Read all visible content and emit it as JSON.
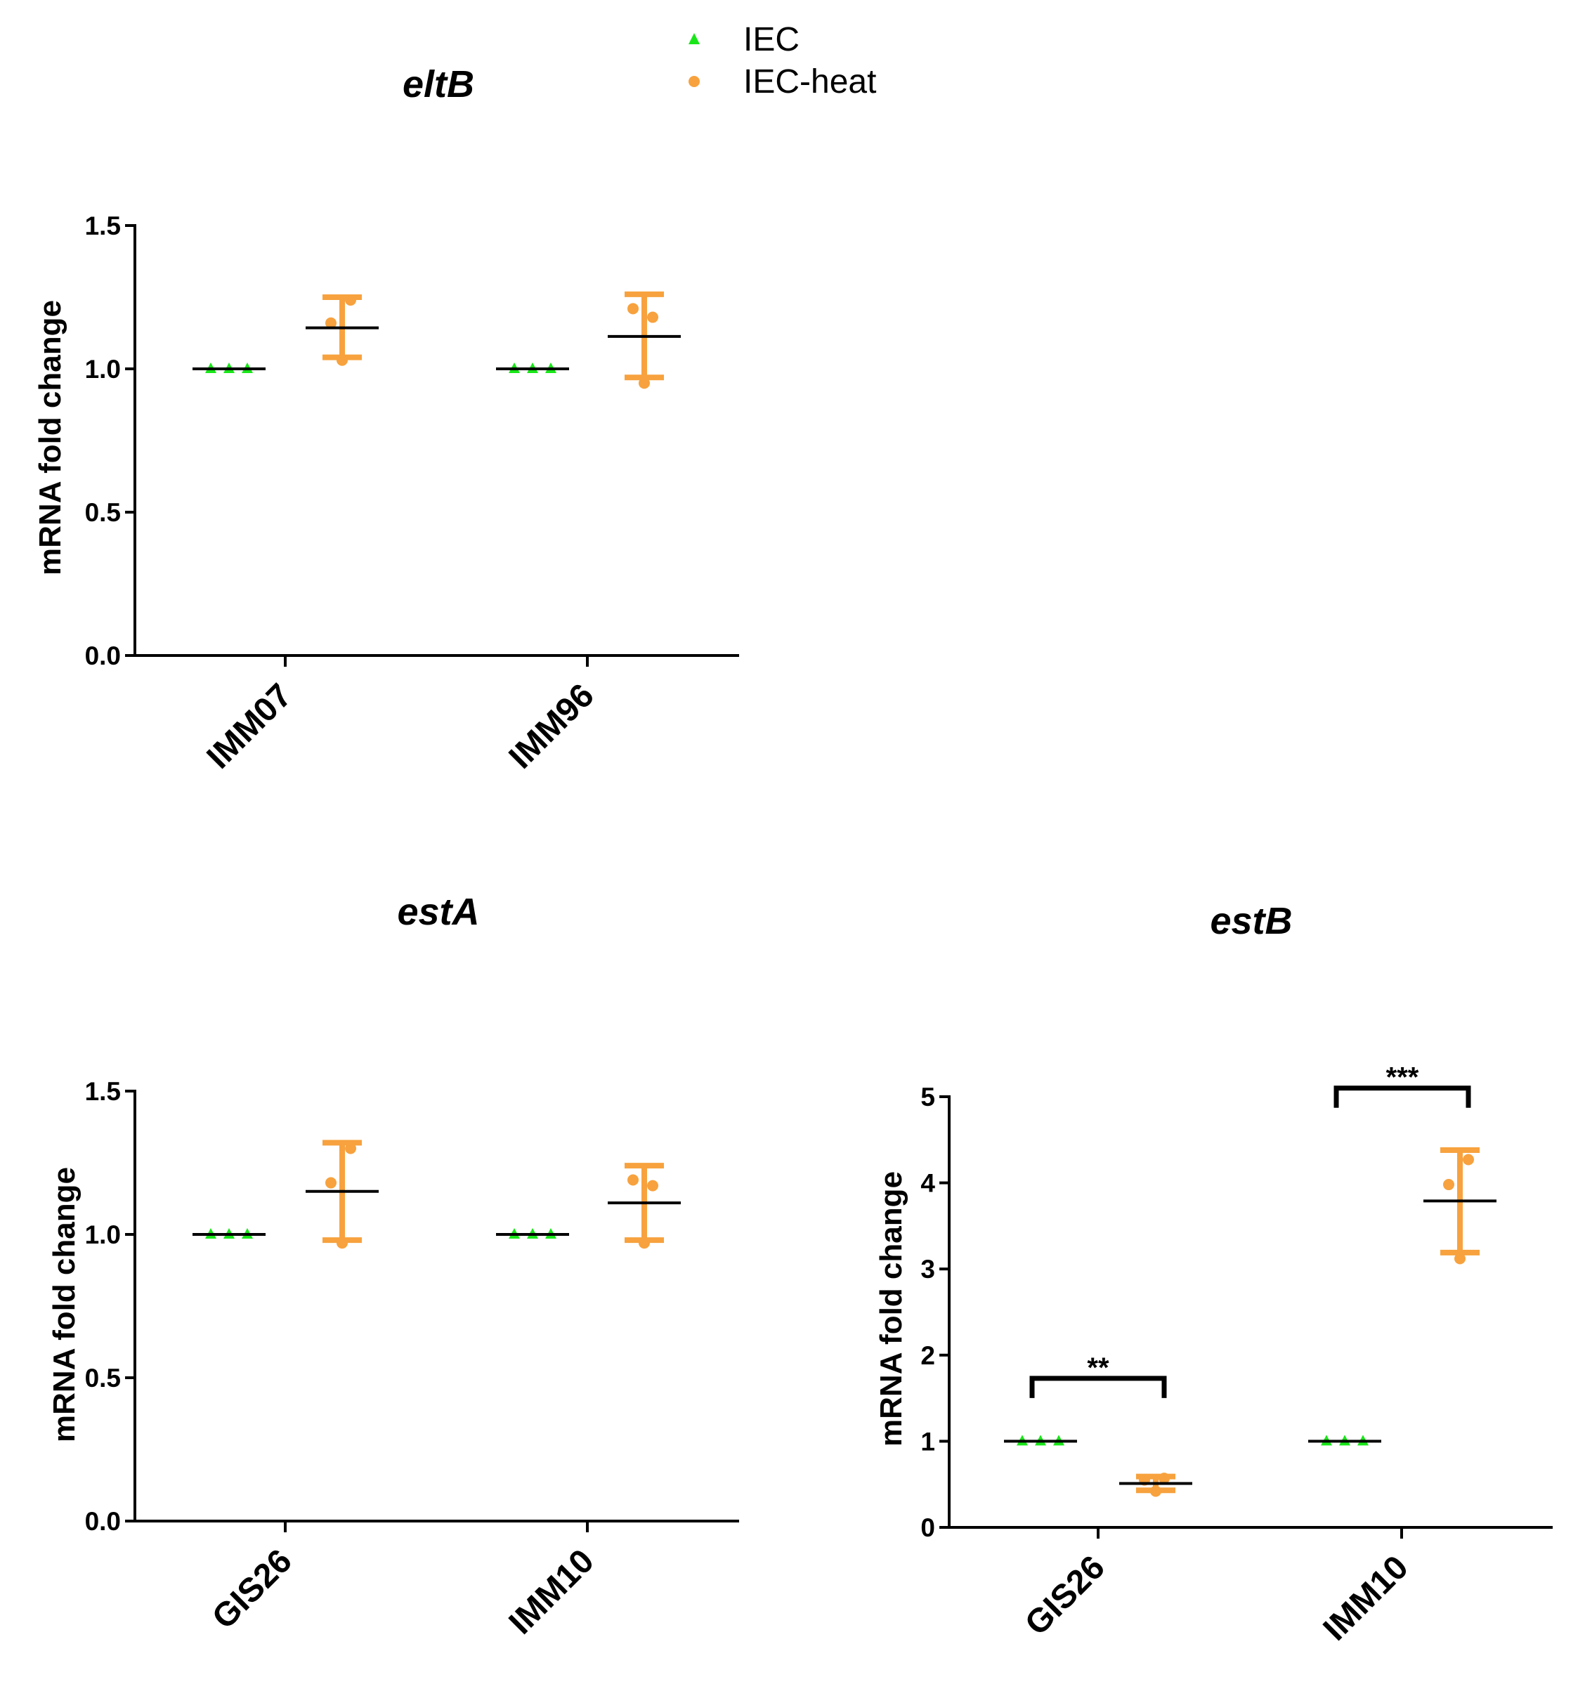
{
  "legend": {
    "placement": "top-center",
    "items": [
      {
        "label": "IEC",
        "color": "#19e619",
        "marker": "triangle"
      },
      {
        "label": "IEC-heat",
        "color": "#f7a23e",
        "marker": "circle"
      }
    ]
  },
  "chart_data": [
    {
      "type": "scatter",
      "title": "eltB",
      "ylabel": "mRNA fold change",
      "ylim": [
        0,
        1.5
      ],
      "yticks": [
        "0.0",
        "0.5",
        "1.0",
        "1.5"
      ],
      "categories": [
        "IMM07",
        "IMM96"
      ],
      "groups": [
        {
          "category": "IMM07",
          "series": "IEC",
          "points": [
            1.0,
            1.0,
            1.0
          ],
          "mean": 1.0
        },
        {
          "category": "IMM07",
          "series": "IEC-heat",
          "points": [
            1.03,
            1.16,
            1.24
          ],
          "mean": 1.143,
          "sd_low": 1.04,
          "sd_high": 1.25
        },
        {
          "category": "IMM96",
          "series": "IEC",
          "points": [
            1.0,
            1.0,
            1.0
          ],
          "mean": 1.0
        },
        {
          "category": "IMM96",
          "series": "IEC-heat",
          "points": [
            0.95,
            1.21,
            1.18
          ],
          "mean": 1.113,
          "sd_low": 0.97,
          "sd_high": 1.26
        }
      ],
      "significance": []
    },
    {
      "type": "scatter",
      "title": "estA",
      "ylabel": "mRNA fold change",
      "ylim": [
        0,
        1.5
      ],
      "yticks": [
        "0.0",
        "0.5",
        "1.0",
        "1.5"
      ],
      "categories": [
        "GIS26",
        "IMM10"
      ],
      "groups": [
        {
          "category": "GIS26",
          "series": "IEC",
          "points": [
            1.0,
            1.0,
            1.0
          ],
          "mean": 1.0
        },
        {
          "category": "GIS26",
          "series": "IEC-heat",
          "points": [
            0.97,
            1.18,
            1.3
          ],
          "mean": 1.15,
          "sd_low": 0.98,
          "sd_high": 1.32
        },
        {
          "category": "IMM10",
          "series": "IEC",
          "points": [
            1.0,
            1.0,
            1.0
          ],
          "mean": 1.0
        },
        {
          "category": "IMM10",
          "series": "IEC-heat",
          "points": [
            0.97,
            1.19,
            1.17
          ],
          "mean": 1.11,
          "sd_low": 0.98,
          "sd_high": 1.24
        }
      ],
      "significance": []
    },
    {
      "type": "scatter",
      "title": "estB",
      "ylabel": "mRNA fold change",
      "ylim": [
        0,
        5
      ],
      "yticks": [
        "0",
        "1",
        "2",
        "3",
        "4",
        "5"
      ],
      "categories": [
        "GIS26",
        "IMM10"
      ],
      "groups": [
        {
          "category": "GIS26",
          "series": "IEC",
          "points": [
            1.0,
            1.0,
            1.0
          ],
          "mean": 1.0
        },
        {
          "category": "GIS26",
          "series": "IEC-heat",
          "points": [
            0.42,
            0.55,
            0.57
          ],
          "mean": 0.51,
          "sd_low": 0.43,
          "sd_high": 0.59
        },
        {
          "category": "IMM10",
          "series": "IEC",
          "points": [
            1.0,
            1.0,
            1.0
          ],
          "mean": 1.0
        },
        {
          "category": "IMM10",
          "series": "IEC-heat",
          "points": [
            3.12,
            3.98,
            4.27
          ],
          "mean": 3.79,
          "sd_low": 3.19,
          "sd_high": 4.38
        }
      ],
      "significance": [
        {
          "category": "GIS26",
          "label": "**",
          "y": 1.73
        },
        {
          "category": "IMM10",
          "label": "***",
          "y": 5.1
        }
      ]
    }
  ]
}
